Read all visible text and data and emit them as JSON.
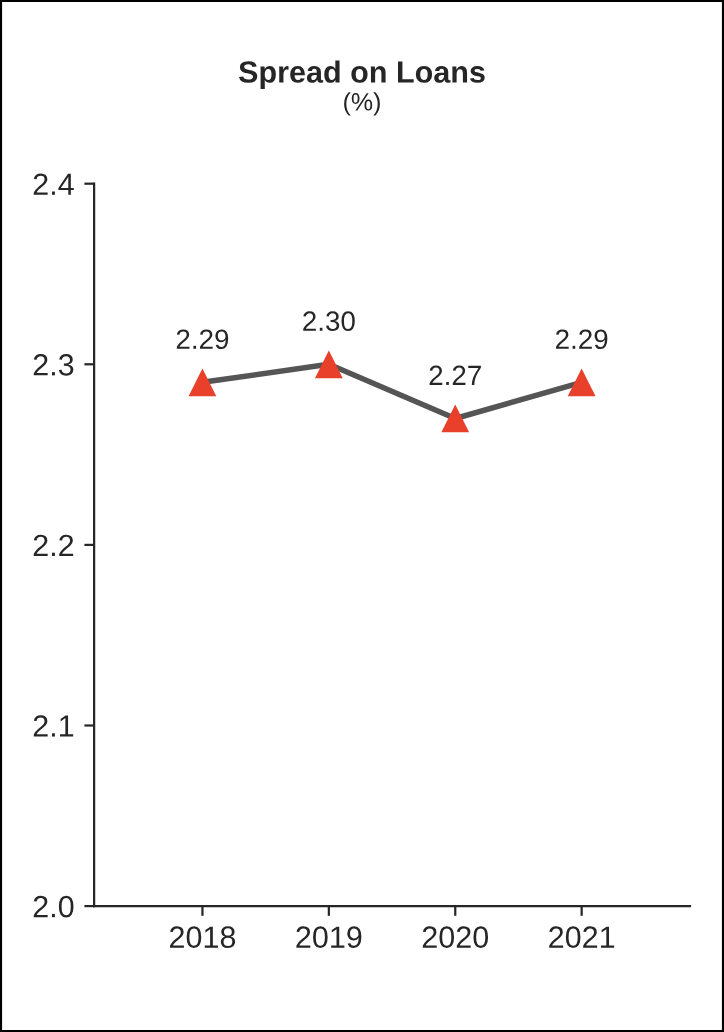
{
  "chart_data": {
    "type": "line",
    "title": "Spread on Loans",
    "subtitle": "(%)",
    "categories": [
      "2018",
      "2019",
      "2020",
      "2021"
    ],
    "series": [
      {
        "color": "#555555",
        "values": [
          2.29,
          2.3,
          2.27,
          2.29
        ],
        "value_labels": [
          "2.29",
          "2.30",
          "2.27",
          "2.29"
        ],
        "colors": [
          "#e8402a",
          "#e8402a",
          "#e8402a",
          "#e8402a"
        ]
      }
    ],
    "ylim": [
      2.0,
      2.4
    ],
    "yticks": [
      {
        "value": 2.0,
        "label": "2.0"
      },
      {
        "value": 2.1,
        "label": "2.1"
      },
      {
        "value": 2.2,
        "label": "2.2"
      },
      {
        "value": 2.3,
        "label": "2.3"
      },
      {
        "value": 2.4,
        "label": "2.4"
      }
    ],
    "grid": false,
    "legend": false,
    "marker": "triangle",
    "line_style": "solid"
  }
}
